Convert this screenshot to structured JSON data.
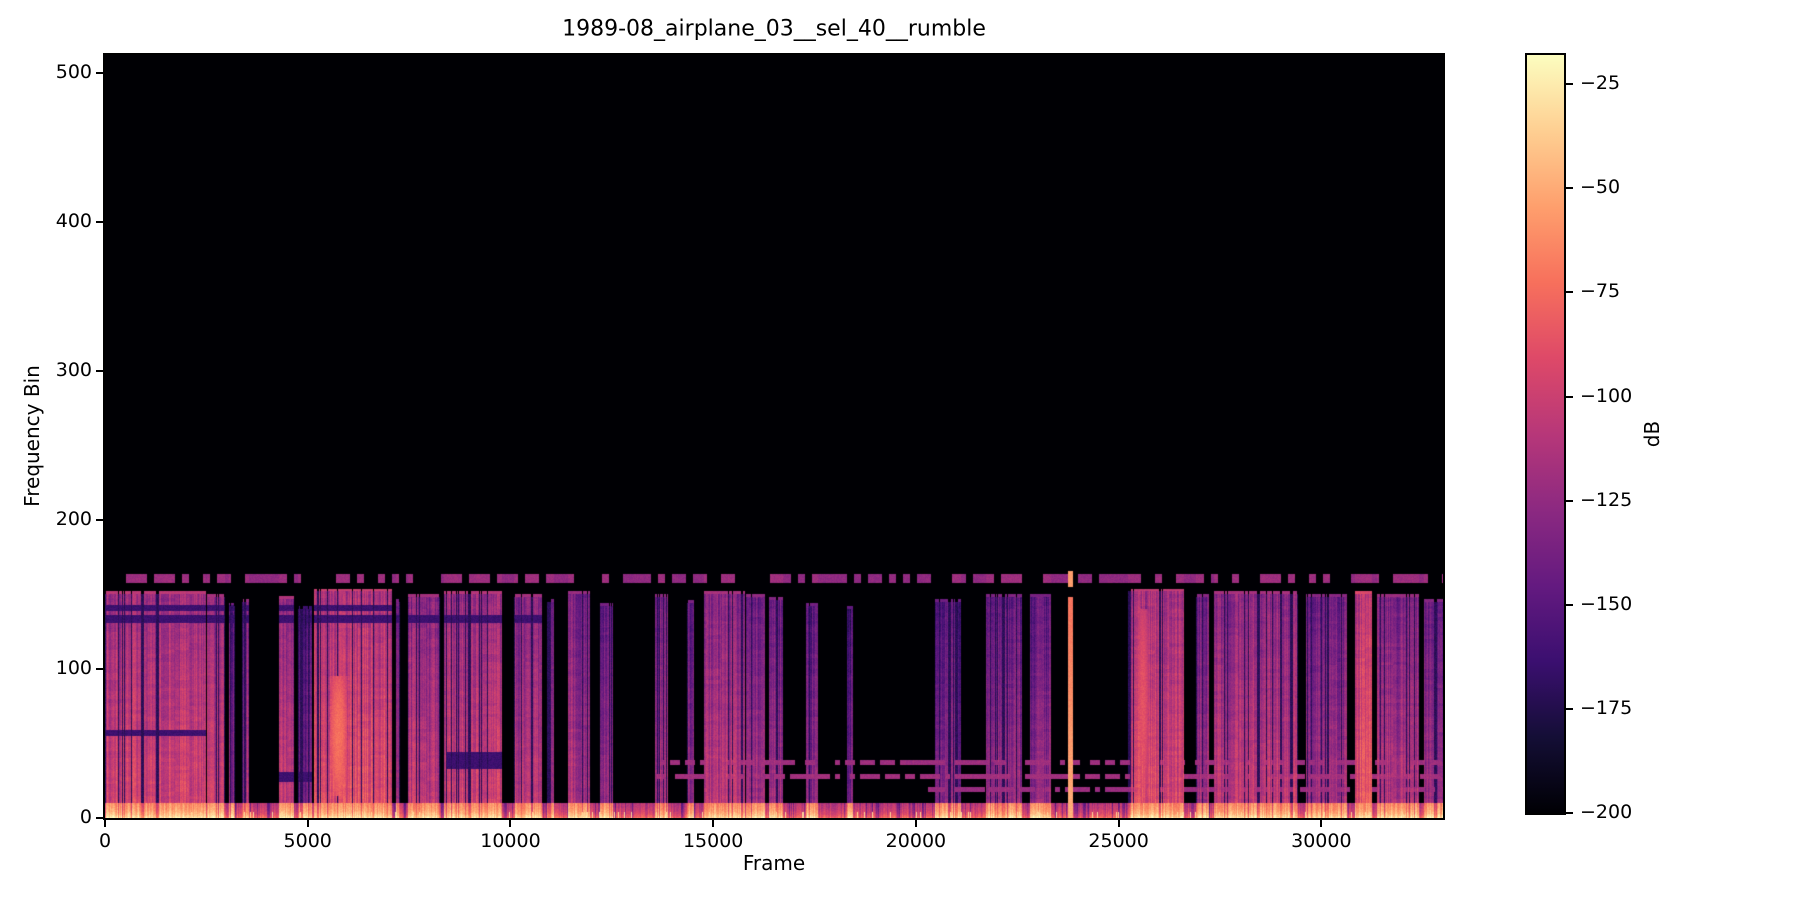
{
  "figure": {
    "background": "#ffffff",
    "text_color": "#000000",
    "spine_color": "#000000"
  },
  "chart_data": {
    "type": "heatmap",
    "subtype": "spectrogram",
    "title": "1989-08_airplane_03__sel_40__rumble",
    "xlabel": "Frame",
    "ylabel": "Frequency Bin",
    "x_range": [
      0,
      33000
    ],
    "y_range": [
      0,
      512
    ],
    "x_ticks": [
      0,
      5000,
      10000,
      15000,
      20000,
      25000,
      30000
    ],
    "x_tick_labels": [
      "0",
      "5000",
      "10000",
      "15000",
      "20000",
      "25000",
      "30000"
    ],
    "y_ticks": [
      0,
      100,
      200,
      300,
      400,
      500
    ],
    "y_tick_labels": [
      "0",
      "100",
      "200",
      "300",
      "400",
      "500"
    ],
    "grid": false,
    "legend": false,
    "colorbar": {
      "label": "dB",
      "vmin": -200,
      "vmax": -18,
      "ticks": [
        -25,
        -50,
        -75,
        -100,
        -125,
        -150,
        -175,
        -200
      ],
      "tick_labels": [
        "−25",
        "−50",
        "−75",
        "−100",
        "−125",
        "−150",
        "−175",
        "−200"
      ],
      "colormap": "magma",
      "stops": [
        [
          0.0,
          "#000004"
        ],
        [
          0.1,
          "#140e36"
        ],
        [
          0.2,
          "#3b0f70"
        ],
        [
          0.3,
          "#641a80"
        ],
        [
          0.4,
          "#8c2981"
        ],
        [
          0.5,
          "#b73779"
        ],
        [
          0.6,
          "#de4968"
        ],
        [
          0.7,
          "#f7705c"
        ],
        [
          0.8,
          "#fe9f6d"
        ],
        [
          0.9,
          "#fecf92"
        ],
        [
          1.0,
          "#fcfdbf"
        ]
      ]
    },
    "content": {
      "max_active_bin": 170,
      "segments": [
        {
          "f": [
            0,
            2480
          ],
          "top": 150,
          "peak": -96
        },
        {
          "f": [
            2520,
            2960
          ],
          "top": 148,
          "peak": -106
        },
        {
          "f": [
            3050,
            3200
          ],
          "top": 142,
          "peak": -128
        },
        {
          "f": [
            3380,
            3560
          ],
          "top": 145,
          "peak": -112
        },
        {
          "f": [
            4280,
            4660
          ],
          "top": 147,
          "peak": -102
        },
        {
          "f": [
            4750,
            5100
          ],
          "top": 140,
          "peak": -135
        },
        {
          "f": [
            5150,
            7080
          ],
          "top": 152,
          "peak": -90
        },
        {
          "f": [
            7180,
            7280
          ],
          "top": 145,
          "peak": -125
        },
        {
          "f": [
            7480,
            8260
          ],
          "top": 148,
          "peak": -107
        },
        {
          "f": [
            8360,
            9780
          ],
          "top": 150,
          "peak": -99
        },
        {
          "f": [
            10080,
            10780
          ],
          "top": 148,
          "peak": -107
        },
        {
          "f": [
            10900,
            11080
          ],
          "top": 145,
          "peak": -125
        },
        {
          "f": [
            11420,
            11950
          ],
          "top": 150,
          "peak": -112
        },
        {
          "f": [
            12220,
            12520
          ],
          "top": 142,
          "peak": -127
        },
        {
          "f": [
            13560,
            13880
          ],
          "top": 148,
          "peak": -116
        },
        {
          "f": [
            14360,
            14520
          ],
          "top": 144,
          "peak": -124
        },
        {
          "f": [
            14780,
            15780
          ],
          "top": 150,
          "peak": -106
        },
        {
          "f": [
            15820,
            16280
          ],
          "top": 148,
          "peak": -116
        },
        {
          "f": [
            16380,
            16720
          ],
          "top": 146,
          "peak": -121
        },
        {
          "f": [
            17280,
            17580
          ],
          "top": 142,
          "peak": -129
        },
        {
          "f": [
            18300,
            18450
          ],
          "top": 140,
          "peak": -137
        },
        {
          "f": [
            20480,
            21120
          ],
          "top": 145,
          "peak": -131
        },
        {
          "f": [
            21720,
            22620
          ],
          "top": 148,
          "peak": -123
        },
        {
          "f": [
            22820,
            23320
          ],
          "top": 148,
          "peak": -126
        },
        {
          "f": [
            25230,
            26620
          ],
          "top": 152,
          "peak": -94
        },
        {
          "f": [
            26920,
            27230
          ],
          "top": 148,
          "peak": -119
        },
        {
          "f": [
            27360,
            29420
          ],
          "top": 150,
          "peak": -106
        },
        {
          "f": [
            29620,
            30620
          ],
          "top": 148,
          "peak": -119
        },
        {
          "f": [
            30820,
            31260
          ],
          "top": 150,
          "peak": -82
        },
        {
          "f": [
            31360,
            32420
          ],
          "top": 148,
          "peak": -111
        },
        {
          "f": [
            32520,
            33000
          ],
          "top": 145,
          "peak": -121
        }
      ],
      "vertical_event": {
        "frame": 23810,
        "half_width": 55,
        "top": 148,
        "peak": -48,
        "slope": 0.16,
        "dot_bins": [
          155,
          166
        ],
        "dot_peak": -55
      },
      "hot_blobs": [
        {
          "f": [
            5560,
            5960
          ],
          "bins": [
            15,
            95
          ],
          "peak": -72
        },
        {
          "f": [
            25460,
            25740
          ],
          "bins": [
            5,
            140
          ],
          "peak": -86
        }
      ],
      "bottom_band": {
        "max_bin": 10,
        "peak_in_seg": -52,
        "peak_out": -100
      },
      "dash_band": {
        "bins": [
          158,
          164
        ],
        "peak": -126,
        "duty": 0.55
      },
      "harmonic_lines": [
        {
          "bin": 37,
          "f": [
            13600,
            33000
          ],
          "peak": -120
        },
        {
          "bin": 28,
          "f": [
            13600,
            33000
          ],
          "peak": -118
        },
        {
          "bin": 19,
          "f": [
            20300,
            33000
          ],
          "peak": -122
        }
      ],
      "notches": [
        {
          "bins": [
            131,
            136
          ],
          "f": [
            0,
            11000
          ]
        },
        {
          "bins": [
            139,
            143
          ],
          "f": [
            0,
            7100
          ]
        },
        {
          "bins": [
            55,
            59
          ],
          "f": [
            0,
            2500
          ]
        },
        {
          "bins": [
            33,
            44
          ],
          "f": [
            8400,
            9800
          ]
        },
        {
          "bins": [
            24,
            31
          ],
          "f": [
            4300,
            5100
          ]
        }
      ]
    }
  }
}
